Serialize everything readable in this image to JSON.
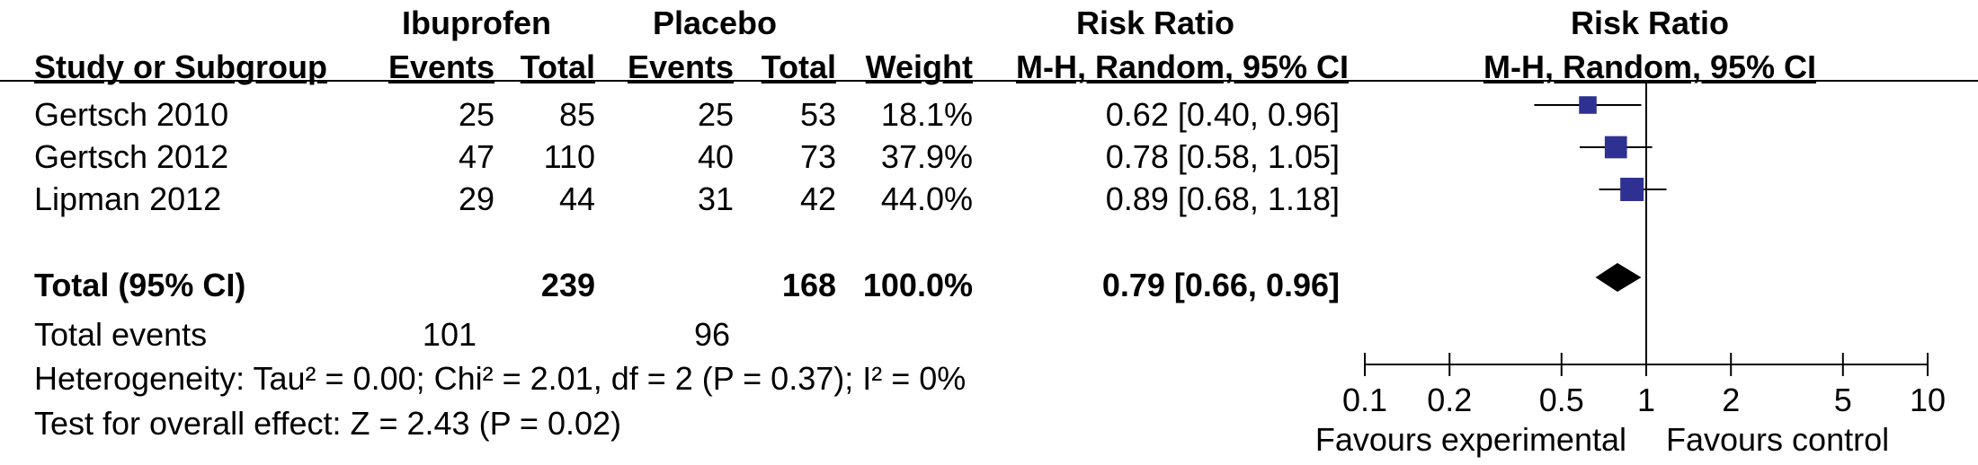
{
  "header": {
    "group1": "Ibuprofen",
    "group2": "Placebo",
    "rr_title": "Risk Ratio",
    "study_col": "Study or Subgroup",
    "events1": "Events",
    "total1": "Total",
    "events2": "Events",
    "total2": "Total",
    "weight": "Weight",
    "rr_method": "M-H, Random, 95% CI",
    "plot_title": "Risk Ratio",
    "plot_method": "M-H, Random, 95% CI"
  },
  "studies": [
    {
      "name": "Gertsch 2010",
      "e1": "25",
      "t1": "85",
      "e2": "25",
      "t2": "53",
      "weight": "18.1%",
      "ci_text": "0.62 [0.40, 0.96]"
    },
    {
      "name": "Gertsch 2012",
      "e1": "47",
      "t1": "110",
      "e2": "40",
      "t2": "73",
      "weight": "37.9%",
      "ci_text": "0.78 [0.58, 1.05]"
    },
    {
      "name": "Lipman  2012",
      "e1": "29",
      "t1": "44",
      "e2": "31",
      "t2": "42",
      "weight": "44.0%",
      "ci_text": "0.89 [0.68, 1.18]"
    }
  ],
  "total": {
    "label": "Total (95% CI)",
    "t1": "239",
    "t2": "168",
    "weight": "100.0%",
    "ci_text": "0.79 [0.66, 0.96]"
  },
  "total_events": {
    "label": "Total events",
    "e1": "101",
    "e2": "96"
  },
  "heterogeneity": "Heterogeneity: Tau² = 0.00; Chi² = 2.01, df = 2 (P = 0.37); I² = 0%",
  "overall_effect": "Test for overall effect: Z = 2.43 (P = 0.02)",
  "axis": {
    "ticks": [
      0.1,
      0.2,
      0.5,
      1,
      2,
      5,
      10
    ],
    "tick_labels": [
      "0.1",
      "0.2",
      "0.5",
      "1",
      "2",
      "5",
      "10"
    ],
    "left_label": "Favours experimental",
    "right_label": "Favours control"
  },
  "colors": {
    "marker": "#2E3192",
    "diamond": "#000000"
  },
  "chart_data": {
    "type": "forest",
    "scale": "log",
    "xlim": [
      0.1,
      10
    ],
    "null_value": 1,
    "xlabel_left": "Favours experimental",
    "xlabel_right": "Favours control",
    "series": [
      {
        "name": "Gertsch 2010",
        "estimate": 0.62,
        "lower": 0.4,
        "upper": 0.96,
        "weight": 18.1
      },
      {
        "name": "Gertsch 2012",
        "estimate": 0.78,
        "lower": 0.58,
        "upper": 1.05,
        "weight": 37.9
      },
      {
        "name": "Lipman  2012",
        "estimate": 0.89,
        "lower": 0.68,
        "upper": 1.18,
        "weight": 44.0
      }
    ],
    "pooled": {
      "name": "Total (95% CI)",
      "estimate": 0.79,
      "lower": 0.66,
      "upper": 0.96
    }
  }
}
